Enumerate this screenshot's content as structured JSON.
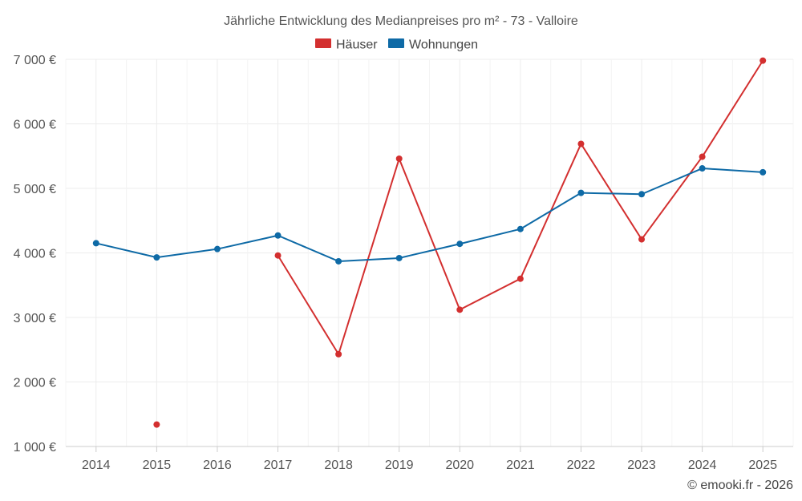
{
  "chart_data": {
    "type": "line",
    "title": "Jährliche Entwicklung des Medianpreises pro m² - 73 - Valloire",
    "categories": [
      "2014",
      "2015",
      "2016",
      "2017",
      "2018",
      "2019",
      "2020",
      "2021",
      "2022",
      "2023",
      "2024",
      "2025"
    ],
    "series": [
      {
        "name": "Häuser",
        "color": "#d32f2f",
        "values": [
          null,
          1340,
          null,
          3960,
          2430,
          5460,
          3120,
          3600,
          5690,
          4210,
          5490,
          6980
        ]
      },
      {
        "name": "Wohnungen",
        "color": "#0e6aa6",
        "values": [
          4150,
          3930,
          4060,
          4270,
          3870,
          3920,
          4140,
          4370,
          4930,
          4910,
          5310,
          5250
        ]
      }
    ],
    "ylim": [
      1000,
      7000
    ],
    "yticks": [
      1000,
      2000,
      3000,
      4000,
      5000,
      6000,
      7000
    ],
    "ytick_labels": [
      "1 000 €",
      "2 000 €",
      "3 000 €",
      "4 000 €",
      "5 000 €",
      "6 000 €",
      "7 000 €"
    ],
    "xlabel": "",
    "ylabel": "",
    "grid": true,
    "legend_position": "top-center",
    "credit": "© emooki.fr - 2026"
  }
}
